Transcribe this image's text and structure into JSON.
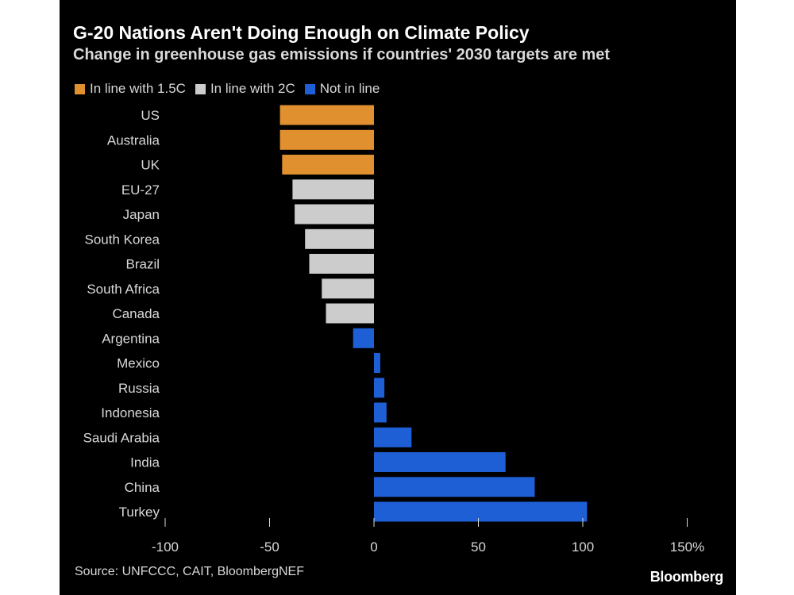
{
  "chart_data": {
    "type": "bar",
    "orientation": "horizontal",
    "title": "G-20 Nations Aren't Doing Enough on Climate Policy",
    "subtitle": "Change in greenhouse gas emissions if countries' 2030 targets are met",
    "xlim": [
      -100,
      150
    ],
    "ticks": [
      {
        "value": -100,
        "label": "-100"
      },
      {
        "value": -50,
        "label": "-50"
      },
      {
        "value": 0,
        "label": "0"
      },
      {
        "value": 50,
        "label": "50"
      },
      {
        "value": 100,
        "label": "100"
      },
      {
        "value": 150,
        "label": "150%"
      }
    ],
    "legend": [
      {
        "key": "1.5c",
        "label": "In line with 1.5C",
        "color": "#e0902e"
      },
      {
        "key": "2c",
        "label": "In line with 2C",
        "color": "#cccccc"
      },
      {
        "key": "not",
        "label": "Not in line",
        "color": "#1f5fd6"
      }
    ],
    "legend_placement": "top-left",
    "bars": [
      {
        "label": "US",
        "value": -45,
        "group": "1.5c"
      },
      {
        "label": "Australia",
        "value": -45,
        "group": "1.5c"
      },
      {
        "label": "UK",
        "value": -44,
        "group": "1.5c"
      },
      {
        "label": "EU-27",
        "value": -39,
        "group": "2c"
      },
      {
        "label": "Japan",
        "value": -38,
        "group": "2c"
      },
      {
        "label": "South Korea",
        "value": -33,
        "group": "2c"
      },
      {
        "label": "Brazil",
        "value": -31,
        "group": "2c"
      },
      {
        "label": "South Africa",
        "value": -25,
        "group": "2c"
      },
      {
        "label": "Canada",
        "value": -23,
        "group": "2c"
      },
      {
        "label": "Argentina",
        "value": -10,
        "group": "not"
      },
      {
        "label": "Mexico",
        "value": 3,
        "group": "not"
      },
      {
        "label": "Russia",
        "value": 5,
        "group": "not"
      },
      {
        "label": "Indonesia",
        "value": 6,
        "group": "not"
      },
      {
        "label": "Saudi Arabia",
        "value": 18,
        "group": "not"
      },
      {
        "label": "India",
        "value": 63,
        "group": "not"
      },
      {
        "label": "China",
        "value": 77,
        "group": "not"
      },
      {
        "label": "Turkey",
        "value": 102,
        "group": "not"
      }
    ]
  },
  "source": "Source: UNFCCC, CAIT, BloombergNEF",
  "brand": "Bloomberg"
}
